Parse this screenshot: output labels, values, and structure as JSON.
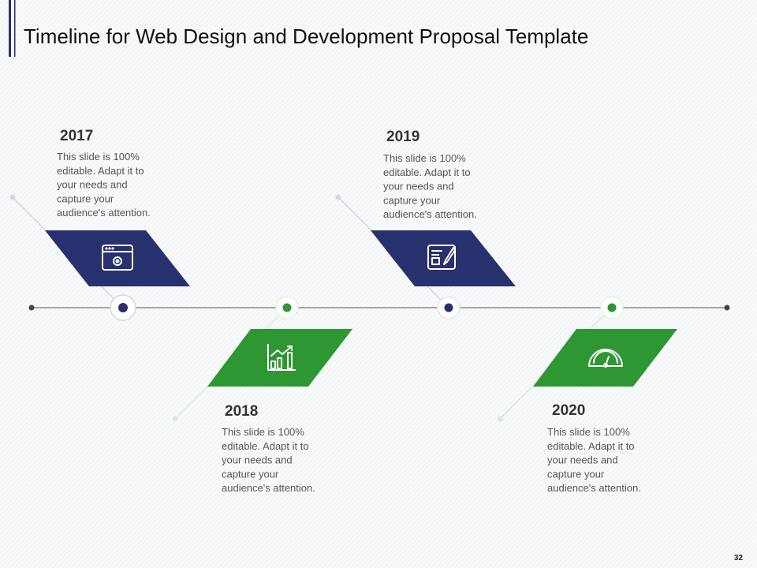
{
  "header": {
    "title": "Timeline for Web Design and Development Proposal Template"
  },
  "items": [
    {
      "year": "2017",
      "lines": [
        "This slide is 100%",
        "editable. Adapt it to",
        "your needs and",
        "capture your",
        "audience's attention."
      ]
    },
    {
      "year": "2018",
      "lines": [
        "This slide is 100%",
        "editable. Adapt it to",
        "your needs and",
        "capture your",
        "audience's attention."
      ]
    },
    {
      "year": "2019",
      "lines": [
        "This slide is 100%",
        "editable. Adapt it to",
        "your needs and",
        "capture your",
        "audience's attention."
      ]
    },
    {
      "year": "2020",
      "lines": [
        "This slide is 100%",
        "editable. Adapt it to",
        "your needs and",
        "capture your",
        "audience's attention."
      ]
    }
  ],
  "footer": {
    "page": "32"
  }
}
